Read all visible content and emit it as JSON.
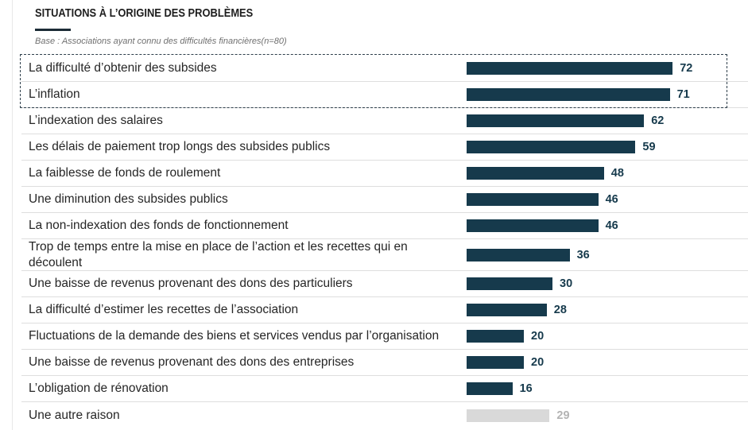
{
  "chart_data": {
    "type": "bar",
    "title": "SITUATIONS À L’ORIGINE DES PROBLÈMES",
    "subtitle": "Base : Associations ayant connu des difficultés financières(n=80)",
    "categories": [
      "La difficulté d’obtenir des subsides",
      "L’inflation",
      "L’indexation des salaires",
      "Les délais de paiement trop longs des subsides publics",
      "La faiblesse de fonds de roulement",
      "Une diminution des subsides publics",
      "La non-indexation des fonds de fonctionnement",
      "Trop de temps entre la mise en place de l’action et les recettes qui en découlent",
      "Une baisse de revenus provenant des dons des particuliers",
      "La difficulté d’estimer les recettes de l’association",
      "Fluctuations de la demande des biens et services vendus par l’organisation",
      "Une baisse de revenus provenant des dons des entreprises",
      "L’obligation de rénovation",
      "Une autre raison"
    ],
    "values": [
      72,
      71,
      62,
      59,
      48,
      46,
      46,
      36,
      30,
      28,
      20,
      20,
      16,
      29
    ],
    "xlim": [
      0,
      100
    ],
    "highlight": {
      "first_index": 0,
      "last_index": 1
    }
  },
  "bar_colors": [
    "#163a4c",
    "#163a4c",
    "#163a4c",
    "#163a4c",
    "#163a4c",
    "#163a4c",
    "#163a4c",
    "#163a4c",
    "#163a4c",
    "#163a4c",
    "#163a4c",
    "#163a4c",
    "#163a4c",
    "#d9d9d9"
  ],
  "value_colors": [
    "#163a4c",
    "#163a4c",
    "#163a4c",
    "#163a4c",
    "#163a4c",
    "#163a4c",
    "#163a4c",
    "#163a4c",
    "#163a4c",
    "#163a4c",
    "#163a4c",
    "#163a4c",
    "#163a4c",
    "#b3b3b3"
  ],
  "colors": {
    "title_rule": "#1c2b36",
    "highlight_border": "#2e3f4b"
  }
}
